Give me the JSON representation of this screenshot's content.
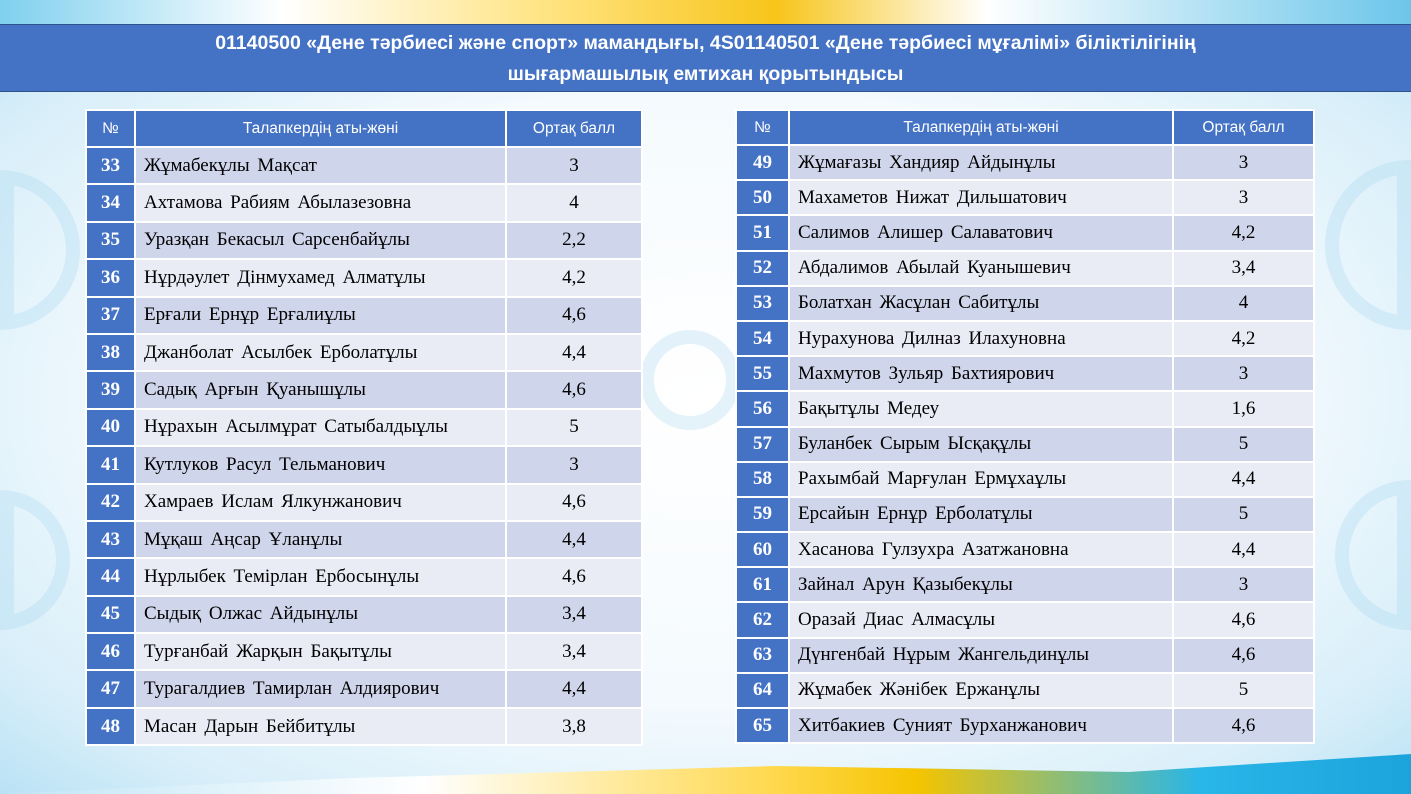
{
  "title": {
    "line1": "01140500 «Дене тәрбиесі және спорт» мамандығы, 4S01140501 «Дене тәрбиесі мұғалімі» біліктілігінің",
    "line2": "шығармашылық емтихан қорытындысы"
  },
  "colors": {
    "header": "#4472c4",
    "row_odd": "#cfd5ea",
    "row_even": "#e9ebf5"
  },
  "columns": {
    "num": "№",
    "name": "Талапкердің аты-жөні",
    "score": "Ортақ балл"
  },
  "left_table": [
    {
      "num": "33",
      "name": "Жұмабекұлы Мақсат",
      "score": "3"
    },
    {
      "num": "34",
      "name": "Ахтамова Рабиям Абылазезовна",
      "score": "4"
    },
    {
      "num": "35",
      "name": "Уразқан Бекасыл Сарсенбайұлы",
      "score": "2,2"
    },
    {
      "num": "36",
      "name": "Нұрдәулет Дінмухамед Алматұлы",
      "score": "4,2"
    },
    {
      "num": "37",
      "name": "Ерғали  Ернұр Ерғалиұлы",
      "score": "4,6"
    },
    {
      "num": "38",
      "name": "Джанболат Асылбек Ерболатұлы",
      "score": "4,4"
    },
    {
      "num": "39",
      "name": "Садық Арғын Қуанышұлы",
      "score": "4,6"
    },
    {
      "num": "40",
      "name": "Нұрахын  Асылмұрат Сатыбалдыұлы",
      "score": "5"
    },
    {
      "num": "41",
      "name": "Кутлуков Расул Тельманович",
      "score": "3"
    },
    {
      "num": "42",
      "name": "Хамраев Ислам Ялкунжанович",
      "score": "4,6"
    },
    {
      "num": "43",
      "name": "Мұқаш Аңсар Ұланұлы",
      "score": "4,4"
    },
    {
      "num": "44",
      "name": "Нұрлыбек Темірлан Ербосынұлы",
      "score": "4,6"
    },
    {
      "num": "45",
      "name": "Сыдық Олжас Айдынұлы",
      "score": "3,4"
    },
    {
      "num": "46",
      "name": "Турғанбай Жарқын Бақытұлы",
      "score": "3,4"
    },
    {
      "num": "47",
      "name": "Турагалдиев Тамирлан Алдиярович",
      "score": "4,4"
    },
    {
      "num": "48",
      "name": "Масан Дарын Бейбитұлы",
      "score": "3,8"
    }
  ],
  "right_table": [
    {
      "num": "49",
      "name": "Жұмағазы Хандияр Айдынұлы",
      "score": "3"
    },
    {
      "num": "50",
      "name": "Махаметов Нижат Дильшатович",
      "score": "3"
    },
    {
      "num": "51",
      "name": "Салимов Алишер Салаватович",
      "score": "4,2"
    },
    {
      "num": "52",
      "name": "Абдалимов Абылай Куанышевич",
      "score": "3,4"
    },
    {
      "num": "53",
      "name": "Болатхан Жасұлан Сабитұлы",
      "score": "4"
    },
    {
      "num": "54",
      "name": "Нурахунова Дилназ Илахуновна",
      "score": "4,2"
    },
    {
      "num": "55",
      "name": "Махмутов Зульяр  Бахтиярович",
      "score": "3"
    },
    {
      "num": "56",
      "name": "Бақытұлы Медеу",
      "score": "1,6"
    },
    {
      "num": "57",
      "name": "Буланбек Сырым Ысқақұлы",
      "score": "5"
    },
    {
      "num": "58",
      "name": "Рахымбай  Марғулан Ермұхаұлы",
      "score": "4,4"
    },
    {
      "num": "59",
      "name": "Ерсайын Ернұр Ерболатұлы",
      "score": "5"
    },
    {
      "num": "60",
      "name": "Хасанова Гулзухра  Азатжановна",
      "score": "4,4"
    },
    {
      "num": "61",
      "name": "Зайнал Арун Қазыбекұлы",
      "score": "3"
    },
    {
      "num": "62",
      "name": "Оразай Диас Алмасұлы",
      "score": "4,6"
    },
    {
      "num": "63",
      "name": "Дүнгенбай  Нұрым Жангельдинұлы",
      "score": "4,6"
    },
    {
      "num": "64",
      "name": "Жұмабек  Жәнібек Ержанұлы",
      "score": "5"
    },
    {
      "num": "65",
      "name": "Хитбакиев  Суният Бурханжанович",
      "score": "4,6"
    }
  ]
}
